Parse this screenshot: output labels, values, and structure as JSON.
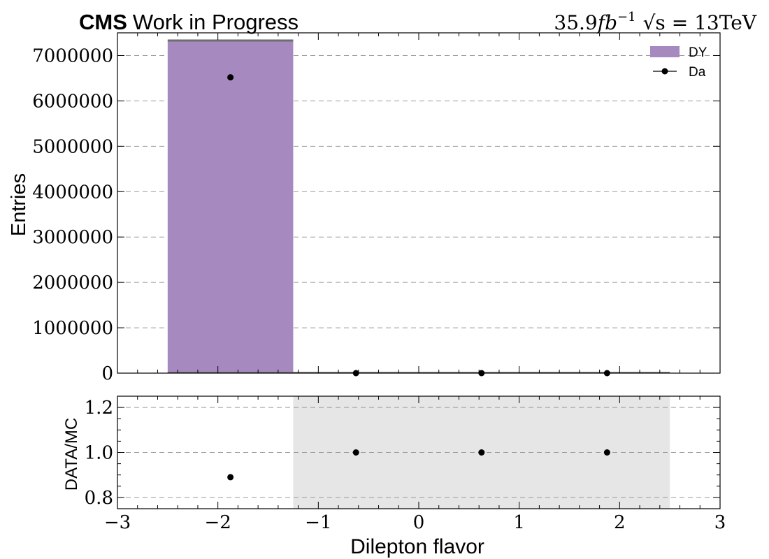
{
  "chart_data": [
    {
      "panel": "main",
      "type": "bar",
      "title_bold": "CMS",
      "title_rest": "Work in Progress",
      "lumi_text": "35.9",
      "lumi_unit": "fb",
      "lumi_exp": "−1",
      "energy_text": "√s = 13TeV",
      "xlabel": "",
      "ylabel": "Entries",
      "xlim": [
        -3,
        3
      ],
      "ylim": [
        0,
        7500000
      ],
      "yticks": [
        0,
        1000000,
        2000000,
        3000000,
        4000000,
        5000000,
        6000000,
        7000000
      ],
      "ytick_labels": [
        "0",
        "1000000",
        "2000000",
        "3000000",
        "4000000",
        "5000000",
        "6000000",
        "7000000"
      ],
      "grid": true,
      "legend_position": "top-right",
      "bins": [
        -2.5,
        -1.25,
        0.0,
        1.25,
        2.5
      ],
      "stack": [
        {
          "name": "DY",
          "color": "#a68abf",
          "values": [
            7330000,
            0,
            0,
            0
          ]
        }
      ],
      "data_series": {
        "name": "Da",
        "color": "#000000",
        "x": [
          -1.875,
          -0.625,
          0.625,
          1.875
        ],
        "y": [
          6520000,
          0,
          0,
          0
        ]
      }
    },
    {
      "panel": "ratio",
      "type": "scatter",
      "xlabel": "Dilepton flavor",
      "ylabel": "DATA/MC",
      "xlim": [
        -3,
        3
      ],
      "ylim": [
        0.75,
        1.25
      ],
      "xticks": [
        -3,
        -2,
        -1,
        0,
        1,
        2,
        3
      ],
      "xtick_labels": [
        "−3",
        "−2",
        "−1",
        "0",
        "1",
        "2",
        "3"
      ],
      "yticks": [
        0.8,
        1.0,
        1.2
      ],
      "ytick_labels": [
        "0.8",
        "1.0",
        "1.2"
      ],
      "grid": true,
      "uncertainty_band": {
        "x": [
          -1.25,
          2.5
        ],
        "y": [
          0.75,
          1.25
        ],
        "color": "#e6e6e6"
      },
      "points": {
        "x": [
          -1.875,
          -0.625,
          0.625,
          1.875
        ],
        "y": [
          0.89,
          1.0,
          1.0,
          1.0
        ]
      }
    }
  ]
}
